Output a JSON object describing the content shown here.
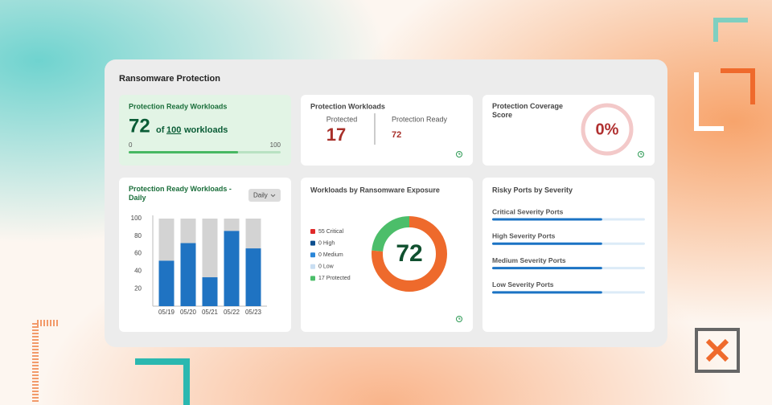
{
  "header": {
    "title": "Ransomware Protection"
  },
  "ready_card": {
    "title": "Protection Ready Workloads",
    "value": 72,
    "of": "of",
    "total": 100,
    "unit": "workloads",
    "min": 0,
    "max": 100
  },
  "workloads_card": {
    "title": "Protection Workloads",
    "protected_label": "Protected",
    "protected": 17,
    "ready_label": "Protection Ready",
    "ready": 72
  },
  "coverage_card": {
    "title": "Protection Coverage Score",
    "value": 0,
    "value_label": "0%"
  },
  "daily_chart": {
    "type": "bar",
    "title": "Protection Ready Workloads - Daily",
    "dropdown": "Daily",
    "categories": [
      "05/19",
      "05/20",
      "05/21",
      "05/22",
      "05/23"
    ],
    "series": [
      {
        "color": "#1f73c2",
        "values": [
          52,
          72,
          33,
          86,
          66
        ]
      },
      {
        "color": "#d3d3d3",
        "values": [
          48,
          28,
          67,
          14,
          34
        ]
      }
    ],
    "ylim": [
      0,
      100
    ],
    "yticks": [
      20,
      40,
      60,
      80,
      100
    ]
  },
  "exposure_chart": {
    "type": "donut",
    "title": "Workloads by Ransomware Exposure",
    "center": 72,
    "items": [
      {
        "value": 55,
        "label": "55 Critical",
        "color": "#e02a2a",
        "arc_color": "#ee6a2c"
      },
      {
        "value": 0,
        "label": "0 High",
        "color": "#0d4f8f",
        "arc_color": "#0d4f8f"
      },
      {
        "value": 0,
        "label": "0 Medium",
        "color": "#2a86d8",
        "arc_color": "#2a86d8"
      },
      {
        "value": 0,
        "label": "0 Low",
        "color": "#c9def2",
        "arc_color": "#c9def2"
      },
      {
        "value": 17,
        "label": "17 Protected",
        "color": "#4cbe6a",
        "arc_color": "#4cbe6a"
      }
    ]
  },
  "ports_card": {
    "title": "Risky Ports by Severity",
    "max": 100,
    "rows": [
      {
        "label": "Critical Severity Ports",
        "value": 72
      },
      {
        "label": "High Severity Ports",
        "value": 72
      },
      {
        "label": "Medium Severity Ports",
        "value": 72
      },
      {
        "label": "Low Severity Ports",
        "value": 72
      }
    ]
  }
}
